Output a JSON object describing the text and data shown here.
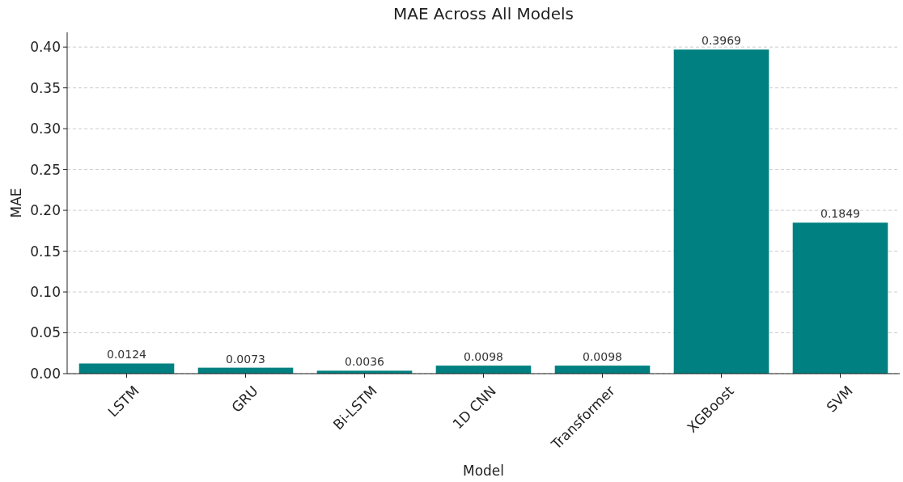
{
  "chart_data": {
    "type": "bar",
    "title": "MAE Across All Models",
    "xlabel": "Model",
    "ylabel": "MAE",
    "categories": [
      "LSTM",
      "GRU",
      "Bi-LSTM",
      "1D CNN",
      "Transformer",
      "XGBoost",
      "SVM"
    ],
    "values": [
      0.0124,
      0.0073,
      0.0036,
      0.0098,
      0.0098,
      0.3969,
      0.1849
    ],
    "color": "#008080",
    "data_labels": true,
    "grid": "y",
    "ylim": [
      0,
      0.418
    ],
    "yticks": [
      {
        "value": 0,
        "label": "0.00"
      },
      {
        "value": 0.05,
        "label": "0.05"
      },
      {
        "value": 0.1,
        "label": "0.10"
      },
      {
        "value": 0.15,
        "label": "0.15"
      },
      {
        "value": 0.2,
        "label": "0.20"
      },
      {
        "value": 0.25,
        "label": "0.25"
      },
      {
        "value": 0.3,
        "label": "0.30"
      },
      {
        "value": 0.35,
        "label": "0.35"
      },
      {
        "value": 0.4,
        "label": "0.40"
      }
    ]
  }
}
